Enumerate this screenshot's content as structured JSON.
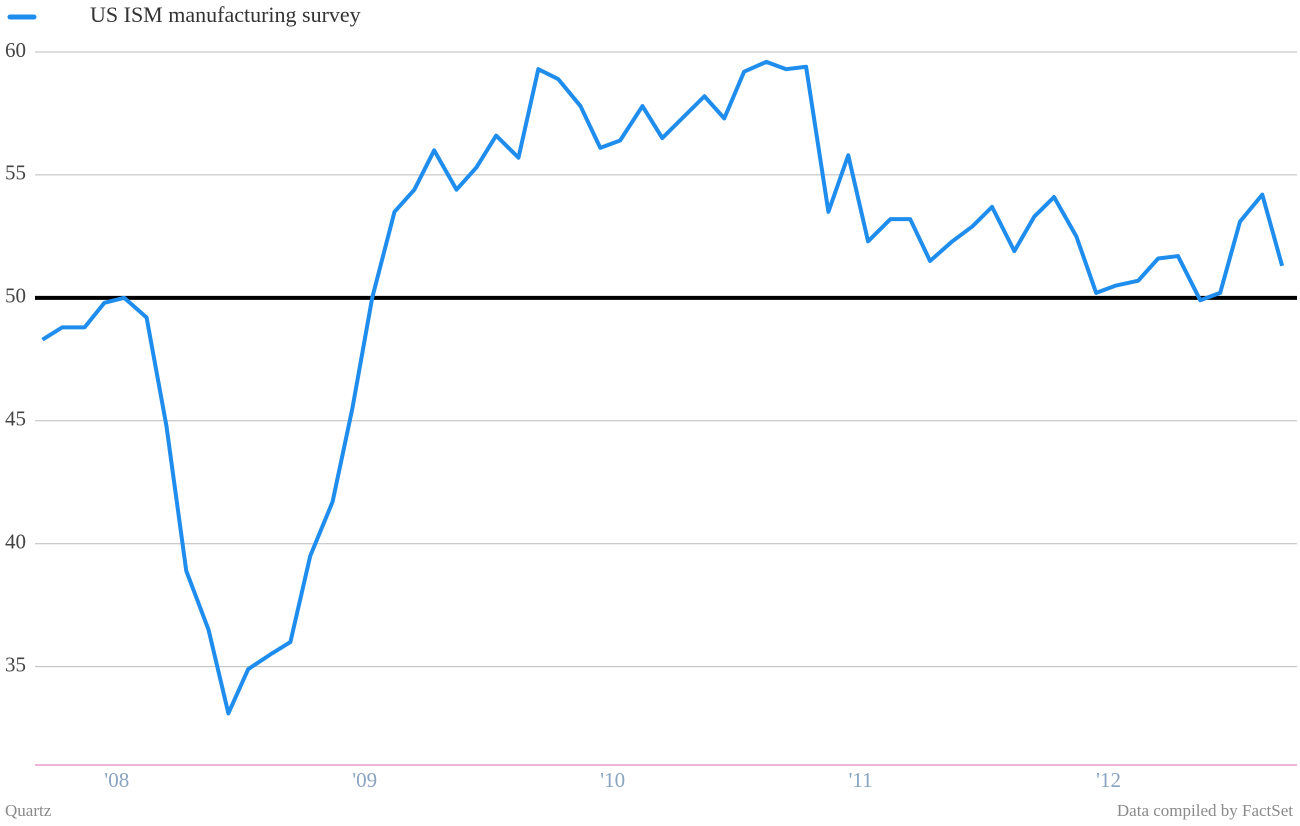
{
  "chart_data": {
    "type": "line",
    "legend_position": "top-left",
    "source": "Data compiled by FactSet",
    "credit": "Quartz",
    "x": [
      2007.7,
      2007.78,
      2007.87,
      2007.95,
      2008.03,
      2008.12,
      2008.2,
      2008.28,
      2008.37,
      2008.45,
      2008.53,
      2008.62,
      2008.7,
      2008.78,
      2008.87,
      2008.95,
      2009.03,
      2009.12,
      2009.2,
      2009.28,
      2009.37,
      2009.45,
      2009.53,
      2009.62,
      2009.7,
      2009.78,
      2009.87,
      2009.95,
      2010.03,
      2010.12,
      2010.2,
      2010.28,
      2010.37,
      2010.45,
      2010.53,
      2010.62,
      2010.7,
      2010.78,
      2010.87,
      2010.95,
      2011.03,
      2011.12,
      2011.2,
      2011.28,
      2011.37,
      2011.45,
      2011.53,
      2011.62,
      2011.7,
      2011.78,
      2011.87,
      2011.95,
      2012.03,
      2012.12,
      2012.2,
      2012.28,
      2012.37,
      2012.45,
      2012.53,
      2012.62,
      2012.7
    ],
    "series": [
      {
        "name": "US ISM manufacturing survey",
        "color": "#1f8ded",
        "values": [
          48.3,
          48.8,
          48.8,
          49.8,
          50.0,
          49.2,
          44.8,
          38.9,
          36.5,
          33.1,
          34.9,
          35.5,
          36.0,
          39.5,
          41.7,
          45.5,
          50.0,
          53.5,
          54.4,
          56.0,
          54.4,
          55.3,
          56.6,
          55.7,
          59.3,
          58.9,
          57.8,
          56.1,
          56.4,
          57.8,
          56.5,
          57.3,
          58.2,
          57.3,
          59.2,
          59.6,
          59.3,
          59.4,
          53.5,
          55.8,
          52.3,
          53.2,
          53.2,
          51.5,
          52.3,
          52.9,
          53.7,
          51.9,
          53.3,
          54.1,
          52.5,
          50.2,
          50.5,
          50.7,
          51.6,
          51.7,
          49.9,
          50.2,
          53.1,
          54.2,
          51.3
        ]
      }
    ],
    "xlim": [
      2007.67,
      2012.76
    ],
    "xticks": [
      {
        "value": 2008,
        "label": "'08"
      },
      {
        "value": 2009,
        "label": "'09"
      },
      {
        "value": 2010,
        "label": "'10"
      },
      {
        "value": 2011,
        "label": "'11"
      },
      {
        "value": 2012,
        "label": "'12"
      }
    ],
    "ylim": [
      31,
      61
    ],
    "yticks": [
      35,
      40,
      45,
      50,
      55,
      60
    ],
    "reference_line": 50,
    "grid": true
  }
}
